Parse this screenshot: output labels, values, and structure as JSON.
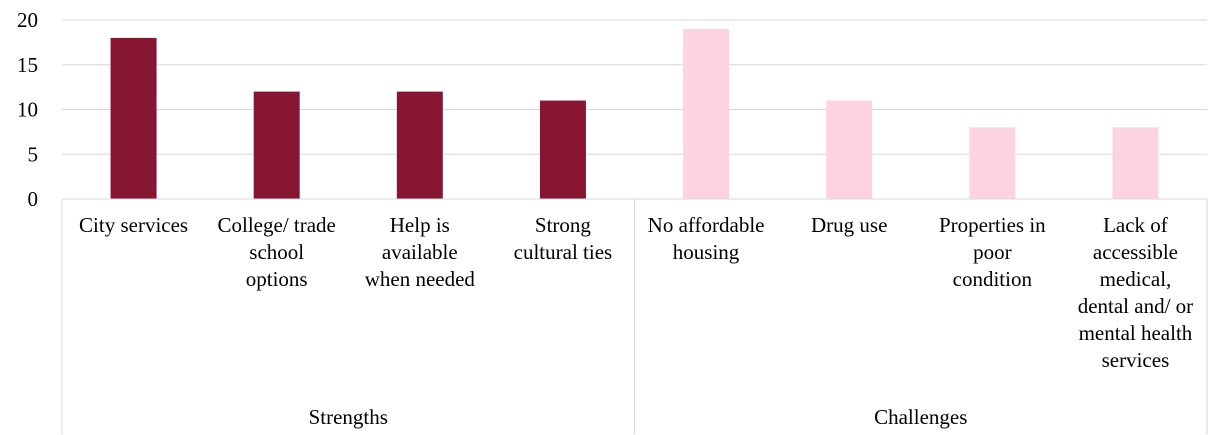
{
  "chart_data": {
    "type": "bar",
    "ylim": [
      0,
      20
    ],
    "yticks": [
      "0",
      "5",
      "10",
      "15",
      "20"
    ],
    "grid": true,
    "groups": [
      {
        "label": "Strengths",
        "color": "#861632",
        "categories": [
          {
            "label_lines": [
              "City services"
            ],
            "value": 18
          },
          {
            "label_lines": [
              "College/ trade",
              "school",
              "options"
            ],
            "value": 12
          },
          {
            "label_lines": [
              "Help is",
              "available",
              "when needed"
            ],
            "value": 12
          },
          {
            "label_lines": [
              "Strong",
              "cultural ties"
            ],
            "value": 11
          }
        ]
      },
      {
        "label": "Challenges",
        "color": "#fdd3e1",
        "categories": [
          {
            "label_lines": [
              "No affordable",
              "housing"
            ],
            "value": 19
          },
          {
            "label_lines": [
              "Drug use"
            ],
            "value": 11
          },
          {
            "label_lines": [
              "Properties in",
              "poor",
              "condition"
            ],
            "value": 8
          },
          {
            "label_lines": [
              "Lack of",
              "accessible",
              "medical,",
              "dental and/ or",
              "mental health",
              "services"
            ],
            "value": 8
          }
        ]
      }
    ]
  }
}
